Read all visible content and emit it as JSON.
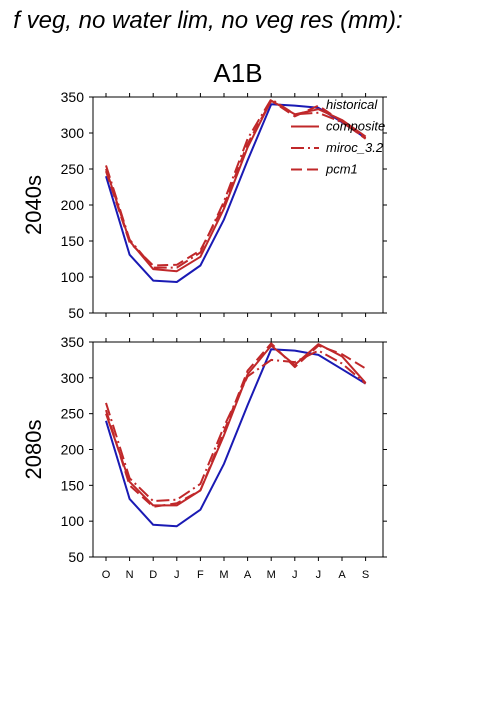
{
  "figure": {
    "suptitle": "f veg, no water lim, no veg res (mm):",
    "scenario": "A1B"
  },
  "colors": {
    "historical": "#1a1ab4",
    "projection": "#c0282a",
    "axis": "#000000"
  },
  "legend": {
    "placement": "top-right",
    "entries": [
      {
        "label": "historical",
        "style": "none"
      },
      {
        "label": "composite",
        "style": "solid"
      },
      {
        "label": "miroc_3.2",
        "style": "dashdot"
      },
      {
        "label": "pcm1",
        "style": "dashed"
      }
    ]
  },
  "chart_data": [
    {
      "type": "line",
      "ylabel": "2040s",
      "xlabel": "",
      "ylim": [
        50,
        350
      ],
      "yticks": [
        50,
        100,
        150,
        200,
        250,
        300,
        350
      ],
      "categories": [
        "O",
        "N",
        "D",
        "J",
        "F",
        "M",
        "A",
        "M",
        "J",
        "J",
        "A",
        "S"
      ],
      "show_tick_labels": false,
      "series": [
        {
          "name": "historical",
          "style": "solid",
          "color": "historical",
          "values": [
            240,
            131,
            95,
            93,
            116,
            180,
            262,
            340,
            338,
            335,
            315,
            293
          ]
        },
        {
          "name": "composite",
          "style": "solid",
          "color": "projection",
          "values": [
            250,
            150,
            111,
            108,
            128,
            195,
            280,
            345,
            326,
            333,
            318,
            295
          ]
        },
        {
          "name": "miroc_3.2",
          "style": "dashdot",
          "color": "projection",
          "values": [
            255,
            152,
            113,
            113,
            134,
            205,
            292,
            347,
            326,
            328,
            315,
            293
          ]
        },
        {
          "name": "pcm1",
          "style": "dashed",
          "color": "projection",
          "values": [
            247,
            148,
            116,
            117,
            137,
            200,
            285,
            345,
            323,
            338,
            316,
            292
          ]
        }
      ]
    },
    {
      "type": "line",
      "ylabel": "2080s",
      "xlabel": "",
      "ylim": [
        50,
        350
      ],
      "yticks": [
        50,
        100,
        150,
        200,
        250,
        300,
        350
      ],
      "categories": [
        "O",
        "N",
        "D",
        "J",
        "F",
        "M",
        "A",
        "M",
        "J",
        "J",
        "A",
        "S"
      ],
      "show_tick_labels": true,
      "series": [
        {
          "name": "historical",
          "style": "solid",
          "color": "historical",
          "values": [
            240,
            131,
            95,
            93,
            116,
            180,
            262,
            340,
            338,
            332,
            312,
            292
          ]
        },
        {
          "name": "composite",
          "style": "solid",
          "color": "projection",
          "values": [
            250,
            155,
            122,
            122,
            143,
            220,
            305,
            345,
            318,
            347,
            330,
            293
          ]
        },
        {
          "name": "miroc_3.2",
          "style": "dashdot",
          "color": "projection",
          "values": [
            265,
            160,
            128,
            130,
            152,
            232,
            302,
            325,
            322,
            338,
            320,
            292
          ]
        },
        {
          "name": "pcm1",
          "style": "dashed",
          "color": "projection",
          "values": [
            255,
            150,
            120,
            125,
            143,
            225,
            310,
            348,
            315,
            345,
            333,
            313
          ]
        }
      ]
    }
  ]
}
